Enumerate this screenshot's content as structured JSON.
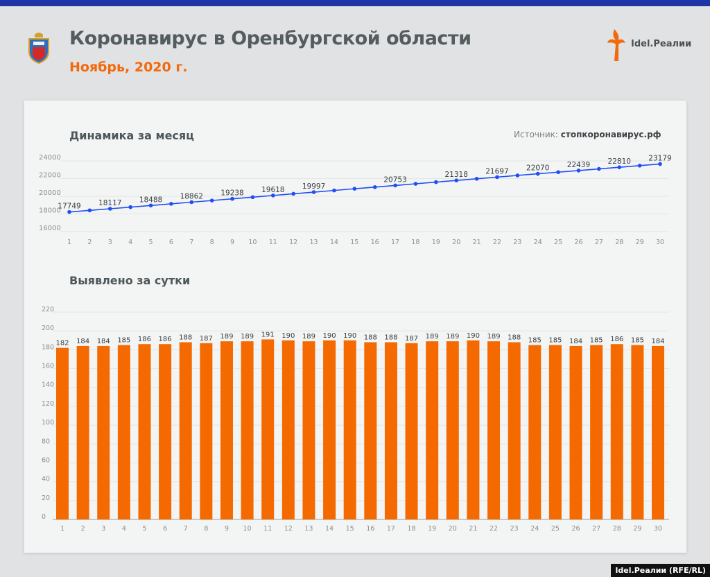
{
  "header": {
    "title": "Коронавирус в Оренбургской области",
    "subtitle": "Ноябрь, 2020 г.",
    "brand": "Idel.Реалии",
    "crest_icon": "oren-region-coat-of-arms-icon"
  },
  "source": {
    "label": "Источник:",
    "value": "стопкоронавирус.рф"
  },
  "credit": "Idel.Реалии (RFE/RL)",
  "colors": {
    "topbar": "#1e35a8",
    "line": "#1f4ef5",
    "bar": "#f56a00",
    "subtitle": "#f26a0c"
  },
  "chart_data": [
    {
      "type": "line",
      "title": "Динамика за месяц",
      "x": [
        1,
        2,
        3,
        4,
        5,
        6,
        7,
        8,
        9,
        10,
        11,
        12,
        13,
        14,
        15,
        16,
        17,
        18,
        19,
        20,
        21,
        22,
        23,
        24,
        25,
        26,
        27,
        28,
        29,
        30
      ],
      "values": [
        17749,
        17933,
        18117,
        18302,
        18488,
        18674,
        18862,
        19049,
        19238,
        19427,
        19618,
        19808,
        19997,
        20187,
        20377,
        20565,
        20753,
        20940,
        21129,
        21318,
        21508,
        21697,
        21885,
        22070,
        22255,
        22439,
        22624,
        22810,
        22995,
        23179
      ],
      "data_labels": {
        "1": "17749",
        "3": "18117",
        "5": "18488",
        "7": "18862",
        "9": "19238",
        "11": "19618",
        "13": "19997",
        "17": "20753",
        "20": "21318",
        "22": "21697",
        "24": "22070",
        "26": "22439",
        "28": "22810",
        "30": "23179"
      },
      "ylim": [
        16000,
        24000
      ],
      "yticks": [
        "16000",
        "18000",
        "20000",
        "22000",
        "24000"
      ],
      "grid": true,
      "color": "#1f4ef5"
    },
    {
      "type": "bar",
      "title": "Выявлено за сутки",
      "categories": [
        "1",
        "2",
        "3",
        "4",
        "5",
        "6",
        "7",
        "8",
        "9",
        "10",
        "11",
        "12",
        "13",
        "14",
        "15",
        "16",
        "17",
        "18",
        "19",
        "20",
        "21",
        "22",
        "23",
        "24",
        "25",
        "26",
        "27",
        "28",
        "29",
        "30"
      ],
      "values": [
        182,
        184,
        184,
        185,
        186,
        186,
        188,
        187,
        189,
        189,
        191,
        190,
        189,
        190,
        190,
        188,
        188,
        187,
        189,
        189,
        190,
        189,
        188,
        185,
        185,
        184,
        185,
        186,
        185,
        184
      ],
      "ylim": [
        0,
        220
      ],
      "yticks": [
        "0",
        "20",
        "40",
        "60",
        "80",
        "100",
        "120",
        "140",
        "160",
        "180",
        "200",
        "220"
      ],
      "grid": true,
      "color": "#f56a00"
    }
  ]
}
